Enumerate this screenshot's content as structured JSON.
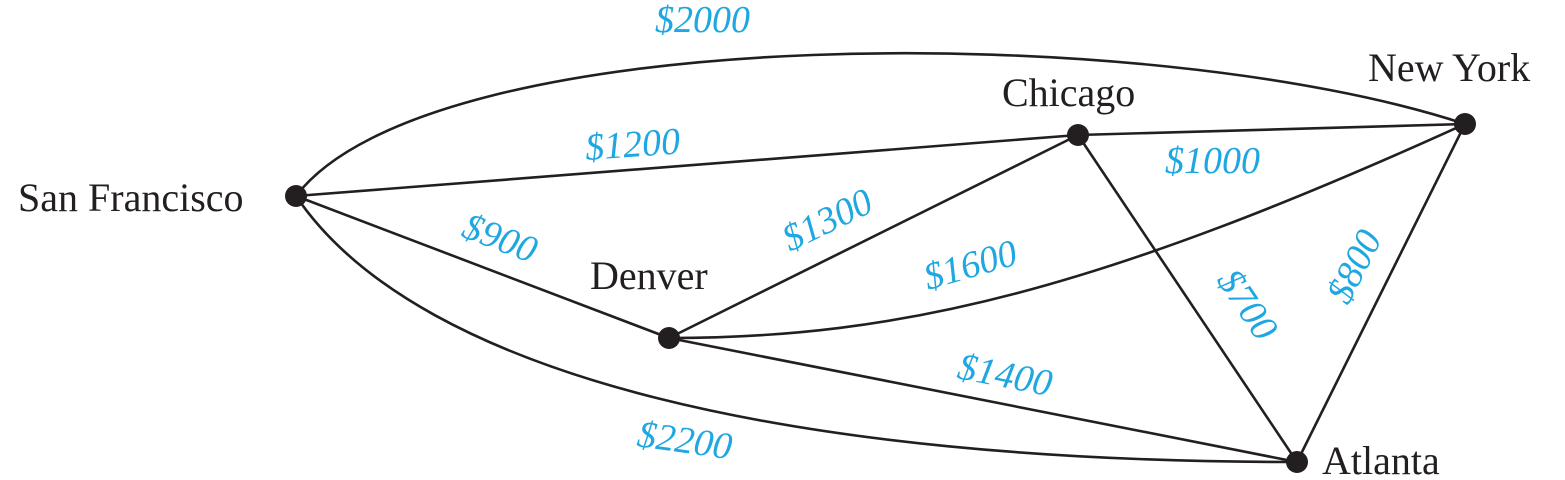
{
  "graph": {
    "nodes": [
      {
        "id": "sf",
        "label": "San Francisco"
      },
      {
        "id": "den",
        "label": "Denver"
      },
      {
        "id": "chi",
        "label": "Chicago"
      },
      {
        "id": "ny",
        "label": "New York"
      },
      {
        "id": "atl",
        "label": "Atlanta"
      }
    ],
    "edges": [
      {
        "from": "sf",
        "to": "ny",
        "cost": "$2000"
      },
      {
        "from": "sf",
        "to": "chi",
        "cost": "$1200"
      },
      {
        "from": "sf",
        "to": "den",
        "cost": "$900"
      },
      {
        "from": "sf",
        "to": "atl",
        "cost": "$2200"
      },
      {
        "from": "den",
        "to": "chi",
        "cost": "$1300"
      },
      {
        "from": "den",
        "to": "ny",
        "cost": "$1600"
      },
      {
        "from": "den",
        "to": "atl",
        "cost": "$1400"
      },
      {
        "from": "chi",
        "to": "ny",
        "cost": "$1000"
      },
      {
        "from": "chi",
        "to": "atl",
        "cost": "$700"
      },
      {
        "from": "ny",
        "to": "atl",
        "cost": "$800"
      }
    ],
    "colors": {
      "cost_label": "#1ea7e1",
      "edge": "#231f20",
      "node": "#231f20"
    }
  }
}
